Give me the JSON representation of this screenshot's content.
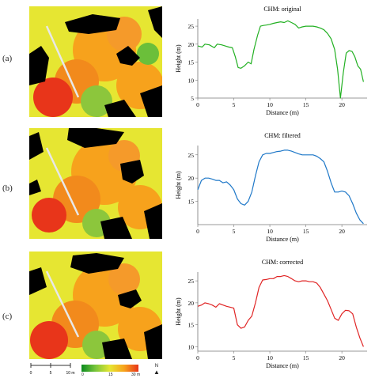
{
  "panels": [
    {
      "label": "(a)",
      "chart_title": "CHM: original"
    },
    {
      "label": "(b)",
      "chart_title": "CHM: filtered"
    },
    {
      "label": "(c)",
      "chart_title": "CHM: corrected"
    }
  ],
  "colors": {
    "original": "#22b022",
    "filtered": "#1f78c8",
    "corrected": "#e02424",
    "canopy_high": "#e8351a",
    "canopy_mid": "#f7a21c",
    "canopy_low": "#e6e632",
    "ground": "#000000"
  },
  "scale_bar": {
    "ticks": [
      "0",
      "5",
      "10 m"
    ]
  },
  "color_bar": {
    "ticks": [
      "0",
      "15",
      "30 m"
    ]
  },
  "north_arrow": {
    "label": "N"
  },
  "chart_data": [
    {
      "type": "line",
      "title": "CHM: original",
      "xlabel": "Distance (m)",
      "ylabel": "Height (m)",
      "xlim": [
        0,
        23.5
      ],
      "ylim": [
        5,
        27
      ],
      "xticks": [
        0,
        5,
        10,
        15,
        20
      ],
      "yticks": [
        5,
        10,
        15,
        20,
        25
      ],
      "grid": false,
      "series": [
        {
          "color": "#22b022",
          "x": [
            0,
            0.6,
            1,
            1.6,
            2.3,
            2.7,
            3.3,
            3.8,
            4.3,
            4.8,
            5.2,
            5.6,
            6,
            6.5,
            7,
            7.4,
            7.8,
            8.3,
            8.7,
            9.1,
            9.5,
            10,
            10.5,
            11,
            11.5,
            12,
            12.5,
            13,
            13.5,
            14,
            14.5,
            15,
            15.5,
            16,
            16.5,
            17,
            17.5,
            18,
            18.5,
            19,
            19.4,
            19.8,
            20.2,
            20.6,
            21,
            21.4,
            21.8,
            22.2,
            22.6,
            23
          ],
          "y": [
            19.5,
            19.2,
            20,
            19.8,
            19,
            20,
            19.8,
            19.5,
            19.2,
            19,
            16.5,
            13.5,
            13.3,
            14,
            15,
            14.5,
            18.5,
            22.5,
            25,
            25.2,
            25.3,
            25.5,
            25.8,
            26,
            26.2,
            26,
            26.5,
            26,
            25.5,
            24.5,
            24.8,
            25,
            25,
            25,
            24.8,
            24.5,
            24,
            23,
            21.5,
            18.5,
            13,
            5,
            12,
            17.5,
            18.2,
            18,
            16.5,
            14,
            13,
            9.5
          ]
        }
      ]
    },
    {
      "type": "line",
      "title": "CHM: filtered",
      "xlabel": "Distance (m)",
      "ylabel": "Height (m)",
      "xlim": [
        0,
        23.5
      ],
      "ylim": [
        10,
        27
      ],
      "xticks": [
        0,
        5,
        10,
        15,
        20
      ],
      "yticks": [
        15,
        20,
        25
      ],
      "grid": false,
      "series": [
        {
          "color": "#1f78c8",
          "x": [
            0,
            0.5,
            1,
            1.5,
            2,
            2.5,
            3,
            3.5,
            4,
            4.5,
            5,
            5.5,
            6,
            6.5,
            7,
            7.5,
            8,
            8.5,
            9,
            9.5,
            10,
            10.5,
            11,
            11.5,
            12,
            12.5,
            13,
            13.5,
            14,
            14.5,
            15,
            15.5,
            16,
            16.5,
            17,
            17.5,
            18,
            18.5,
            19,
            19.5,
            20,
            20.5,
            21,
            21.5,
            22,
            22.5,
            23
          ],
          "y": [
            17.5,
            19.5,
            20,
            20,
            19.8,
            19.5,
            19.5,
            19,
            19.2,
            18.5,
            17.5,
            15.5,
            14.5,
            14.2,
            15,
            17,
            20.5,
            23.5,
            25,
            25.3,
            25.3,
            25.5,
            25.7,
            25.8,
            26,
            26,
            25.8,
            25.5,
            25.2,
            25,
            25,
            25,
            25,
            24.7,
            24.2,
            23.5,
            21.5,
            19,
            17,
            17,
            17.2,
            17,
            16.2,
            14.5,
            12.5,
            11,
            10.2
          ]
        }
      ]
    },
    {
      "type": "line",
      "title": "CHM: corrected",
      "xlabel": "Distance (m)",
      "ylabel": "Height (m)",
      "xlim": [
        0,
        23.5
      ],
      "ylim": [
        9,
        27
      ],
      "xticks": [
        0,
        5,
        10,
        15,
        20
      ],
      "yticks": [
        10,
        15,
        20,
        25
      ],
      "grid": false,
      "series": [
        {
          "color": "#e02424",
          "x": [
            0,
            0.5,
            1,
            1.5,
            2,
            2.5,
            3,
            3.5,
            4,
            4.5,
            5,
            5.5,
            6,
            6.5,
            7,
            7.5,
            8,
            8.5,
            9,
            9.5,
            10,
            10.5,
            11,
            11.5,
            12,
            12.5,
            13,
            13.5,
            14,
            14.5,
            15,
            15.5,
            16,
            16.5,
            17,
            17.5,
            18,
            18.5,
            19,
            19.5,
            20,
            20.5,
            21,
            21.5,
            22,
            22.5,
            23
          ],
          "y": [
            19.2,
            19.5,
            20,
            19.8,
            19.5,
            19,
            19.8,
            19.5,
            19.2,
            19,
            18.8,
            15,
            14.2,
            14.5,
            16,
            17,
            20,
            23.5,
            25.2,
            25.3,
            25.5,
            25.5,
            26,
            26,
            26.2,
            26,
            25.5,
            25,
            24.8,
            25,
            25,
            24.8,
            24.8,
            24.5,
            23.5,
            22,
            20.5,
            18.5,
            16.5,
            16,
            17.5,
            18.3,
            18.2,
            17.5,
            14.5,
            12,
            10
          ]
        }
      ]
    }
  ]
}
